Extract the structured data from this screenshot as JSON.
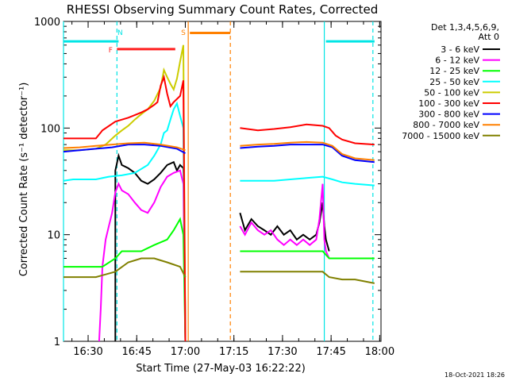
{
  "chart_data": {
    "type": "line",
    "title": "RHESSI Observing Summary Count Rates, Corrected",
    "xlabel": "Start Time (27-May-03 16:22:22)",
    "ylabel": "Corrected Count Rate (s⁻¹ detector⁻¹)",
    "yscale": "log",
    "ylim": [
      1,
      1000
    ],
    "xlim_minutes": [
      0,
      98
    ],
    "x_unit": "minutes after 16:22:22",
    "x_ticks": [
      {
        "label": "16:30",
        "value": 7.6
      },
      {
        "label": "16:45",
        "value": 22.6
      },
      {
        "label": "17:00",
        "value": 37.6
      },
      {
        "label": "17:15",
        "value": 52.6
      },
      {
        "label": "17:30",
        "value": 67.6
      },
      {
        "label": "17:45",
        "value": 82.6
      },
      {
        "label": "18:00",
        "value": 97.6
      }
    ],
    "y_ticks": [
      {
        "label": "1",
        "value": 1
      },
      {
        "label": "10",
        "value": 10
      },
      {
        "label": "100",
        "value": 100
      },
      {
        "label": "1000",
        "value": 1000
      }
    ],
    "legend_header": [
      "Det 1,3,4,5,6,9,",
      "Att 0"
    ],
    "legend_position": "right",
    "footer_stamp": "18-Oct-2021 18:26",
    "gap_minutes": [
      38.5,
      54
    ],
    "annotations": [
      {
        "label": "N",
        "x": 17.5,
        "color": "#00e5e5"
      },
      {
        "label": "F",
        "x": 16,
        "color": "#ff2020"
      },
      {
        "label": "S",
        "x": 37,
        "color": "#ff8000"
      }
    ],
    "bars": [
      {
        "name": "night",
        "color": "#00e5e5",
        "y": 650,
        "ranges": [
          [
            0,
            17
          ],
          [
            81,
            96
          ]
        ]
      },
      {
        "name": "flare",
        "color": "#ff2020",
        "y": 550,
        "ranges": [
          [
            16.5,
            34.5
          ]
        ]
      },
      {
        "name": "saa",
        "color": "#ff8000",
        "y": 780,
        "ranges": [
          [
            39,
            51.5
          ]
        ]
      }
    ],
    "vlines": [
      {
        "x": 0,
        "color": "#00e5e5",
        "style": "solid"
      },
      {
        "x": 16.5,
        "color": "#00e5e5",
        "style": "dashed"
      },
      {
        "x": 38.5,
        "color": "#ff8000",
        "style": "solid"
      },
      {
        "x": 51.5,
        "color": "#ff8000",
        "style": "dashed"
      },
      {
        "x": 80.5,
        "color": "#00e5e5",
        "style": "solid"
      },
      {
        "x": 95.5,
        "color": "#00e5e5",
        "style": "dashed"
      }
    ],
    "series": [
      {
        "name": "3 - 6 keV",
        "color": "#000000",
        "points": [
          [
            16,
            1
          ],
          [
            16,
            40
          ],
          [
            17,
            55
          ],
          [
            18,
            45
          ],
          [
            20,
            42
          ],
          [
            22,
            38
          ],
          [
            24,
            32
          ],
          [
            26,
            30
          ],
          [
            28,
            33
          ],
          [
            30,
            38
          ],
          [
            32,
            45
          ],
          [
            34,
            48
          ],
          [
            35,
            40
          ],
          [
            36,
            45
          ],
          [
            37,
            42
          ],
          [
            37.2,
            28
          ],
          [
            37.6,
            1
          ],
          [
            54.5,
            16
          ],
          [
            56,
            11
          ],
          [
            58,
            14
          ],
          [
            60,
            12
          ],
          [
            62,
            11
          ],
          [
            64,
            10
          ],
          [
            66,
            12
          ],
          [
            68,
            10
          ],
          [
            70,
            11
          ],
          [
            72,
            9
          ],
          [
            74,
            10
          ],
          [
            76,
            9
          ],
          [
            78,
            10
          ],
          [
            79,
            13
          ],
          [
            80,
            20
          ],
          [
            80.5,
            12
          ],
          [
            81,
            9
          ],
          [
            82,
            7
          ]
        ]
      },
      {
        "name": "6 - 12 keV",
        "color": "#ff00ff",
        "points": [
          [
            11,
            1
          ],
          [
            11.5,
            2
          ],
          [
            12,
            5
          ],
          [
            13,
            9
          ],
          [
            14,
            12
          ],
          [
            15,
            16
          ],
          [
            16,
            25
          ],
          [
            17,
            30
          ],
          [
            18,
            26
          ],
          [
            20,
            24
          ],
          [
            22,
            20
          ],
          [
            24,
            17
          ],
          [
            26,
            16
          ],
          [
            28,
            20
          ],
          [
            30,
            28
          ],
          [
            32,
            35
          ],
          [
            34,
            38
          ],
          [
            36,
            40
          ],
          [
            37,
            30
          ],
          [
            37.6,
            1
          ],
          [
            54.5,
            12
          ],
          [
            56,
            10
          ],
          [
            58,
            13
          ],
          [
            60,
            11
          ],
          [
            62,
            10
          ],
          [
            64,
            11
          ],
          [
            66,
            9
          ],
          [
            68,
            8
          ],
          [
            70,
            9
          ],
          [
            72,
            8
          ],
          [
            74,
            9
          ],
          [
            76,
            8
          ],
          [
            78,
            9
          ],
          [
            79,
            14
          ],
          [
            80,
            30
          ],
          [
            80.5,
            9
          ],
          [
            81,
            7
          ],
          [
            82,
            6
          ]
        ]
      },
      {
        "name": "12 - 25 keV",
        "color": "#00ff00",
        "points": [
          [
            0,
            5
          ],
          [
            5,
            5
          ],
          [
            10,
            5
          ],
          [
            12,
            5
          ],
          [
            16,
            6
          ],
          [
            18,
            7
          ],
          [
            20,
            7
          ],
          [
            24,
            7
          ],
          [
            28,
            8
          ],
          [
            32,
            9
          ],
          [
            34,
            11
          ],
          [
            36,
            14
          ],
          [
            37,
            10
          ],
          [
            37.6,
            1
          ],
          [
            54.5,
            7
          ],
          [
            60,
            7
          ],
          [
            65,
            7
          ],
          [
            70,
            7
          ],
          [
            75,
            7
          ],
          [
            80,
            7
          ],
          [
            82,
            6
          ],
          [
            85,
            6
          ],
          [
            90,
            6
          ],
          [
            96,
            6
          ]
        ]
      },
      {
        "name": "25 - 50 keV",
        "color": "#00ffff",
        "points": [
          [
            0,
            32
          ],
          [
            3,
            33
          ],
          [
            6,
            33
          ],
          [
            10,
            33
          ],
          [
            14,
            35
          ],
          [
            18,
            36
          ],
          [
            22,
            38
          ],
          [
            26,
            45
          ],
          [
            28,
            55
          ],
          [
            30,
            70
          ],
          [
            31,
            90
          ],
          [
            32,
            95
          ],
          [
            33,
            120
          ],
          [
            34,
            150
          ],
          [
            35,
            170
          ],
          [
            36,
            130
          ],
          [
            37,
            100
          ],
          [
            37.6,
            1
          ],
          [
            54.5,
            32
          ],
          [
            60,
            32
          ],
          [
            65,
            32
          ],
          [
            70,
            33
          ],
          [
            75,
            34
          ],
          [
            80,
            35
          ],
          [
            83,
            33
          ],
          [
            86,
            31
          ],
          [
            90,
            30
          ],
          [
            96,
            29
          ]
        ]
      },
      {
        "name": "50 - 100 keV",
        "color": "#cccc00",
        "points": [
          [
            0,
            62
          ],
          [
            5,
            62
          ],
          [
            10,
            64
          ],
          [
            13,
            70
          ],
          [
            16,
            85
          ],
          [
            18,
            95
          ],
          [
            20,
            105
          ],
          [
            22,
            120
          ],
          [
            24,
            135
          ],
          [
            26,
            150
          ],
          [
            28,
            180
          ],
          [
            30,
            240
          ],
          [
            31,
            350
          ],
          [
            32,
            300
          ],
          [
            33,
            260
          ],
          [
            34,
            230
          ],
          [
            35,
            290
          ],
          [
            36,
            420
          ],
          [
            37,
            600
          ],
          [
            37.6,
            1
          ]
        ]
      },
      {
        "name": "100 - 300 keV",
        "color": "#ff0000",
        "points": [
          [
            0,
            80
          ],
          [
            5,
            80
          ],
          [
            10,
            80
          ],
          [
            12,
            95
          ],
          [
            16,
            115
          ],
          [
            20,
            125
          ],
          [
            24,
            140
          ],
          [
            26,
            150
          ],
          [
            28,
            165
          ],
          [
            29,
            175
          ],
          [
            30,
            250
          ],
          [
            31,
            300
          ],
          [
            32,
            210
          ],
          [
            33,
            160
          ],
          [
            34,
            175
          ],
          [
            36,
            200
          ],
          [
            37,
            280
          ],
          [
            37.6,
            1
          ],
          [
            54.5,
            100
          ],
          [
            60,
            95
          ],
          [
            65,
            98
          ],
          [
            70,
            102
          ],
          [
            75,
            108
          ],
          [
            80,
            105
          ],
          [
            82,
            100
          ],
          [
            84,
            85
          ],
          [
            86,
            78
          ],
          [
            90,
            72
          ],
          [
            96,
            70
          ]
        ]
      },
      {
        "name": "300 - 800 keV",
        "color": "#0000ff",
        "points": [
          [
            0,
            60
          ],
          [
            5,
            62
          ],
          [
            10,
            64
          ],
          [
            15,
            66
          ],
          [
            20,
            70
          ],
          [
            25,
            70
          ],
          [
            30,
            68
          ],
          [
            35,
            64
          ],
          [
            37.6,
            58
          ],
          [
            54.5,
            65
          ],
          [
            60,
            67
          ],
          [
            65,
            68
          ],
          [
            70,
            70
          ],
          [
            75,
            70
          ],
          [
            80,
            70
          ],
          [
            83,
            66
          ],
          [
            86,
            55
          ],
          [
            90,
            50
          ],
          [
            96,
            48
          ]
        ]
      },
      {
        "name": "800 - 7000 keV",
        "color": "#ff8000",
        "points": [
          [
            0,
            65
          ],
          [
            5,
            66
          ],
          [
            10,
            68
          ],
          [
            15,
            70
          ],
          [
            20,
            72
          ],
          [
            25,
            73
          ],
          [
            30,
            70
          ],
          [
            35,
            66
          ],
          [
            37.6,
            62
          ],
          [
            54.5,
            68
          ],
          [
            60,
            70
          ],
          [
            65,
            71
          ],
          [
            70,
            73
          ],
          [
            75,
            74
          ],
          [
            80,
            73
          ],
          [
            83,
            68
          ],
          [
            86,
            57
          ],
          [
            90,
            52
          ],
          [
            96,
            50
          ]
        ]
      },
      {
        "name": "7000 - 15000 keV",
        "color": "#808000",
        "points": [
          [
            0,
            4
          ],
          [
            5,
            4
          ],
          [
            10,
            4
          ],
          [
            16,
            4.5
          ],
          [
            20,
            5.5
          ],
          [
            24,
            6
          ],
          [
            28,
            6
          ],
          [
            32,
            5.5
          ],
          [
            36,
            5
          ],
          [
            37.6,
            4
          ],
          [
            54.5,
            4.5
          ],
          [
            60,
            4.5
          ],
          [
            65,
            4.5
          ],
          [
            70,
            4.5
          ],
          [
            75,
            4.5
          ],
          [
            80,
            4.5
          ],
          [
            82,
            4
          ],
          [
            86,
            3.8
          ],
          [
            90,
            3.8
          ],
          [
            96,
            3.5
          ]
        ]
      }
    ]
  }
}
